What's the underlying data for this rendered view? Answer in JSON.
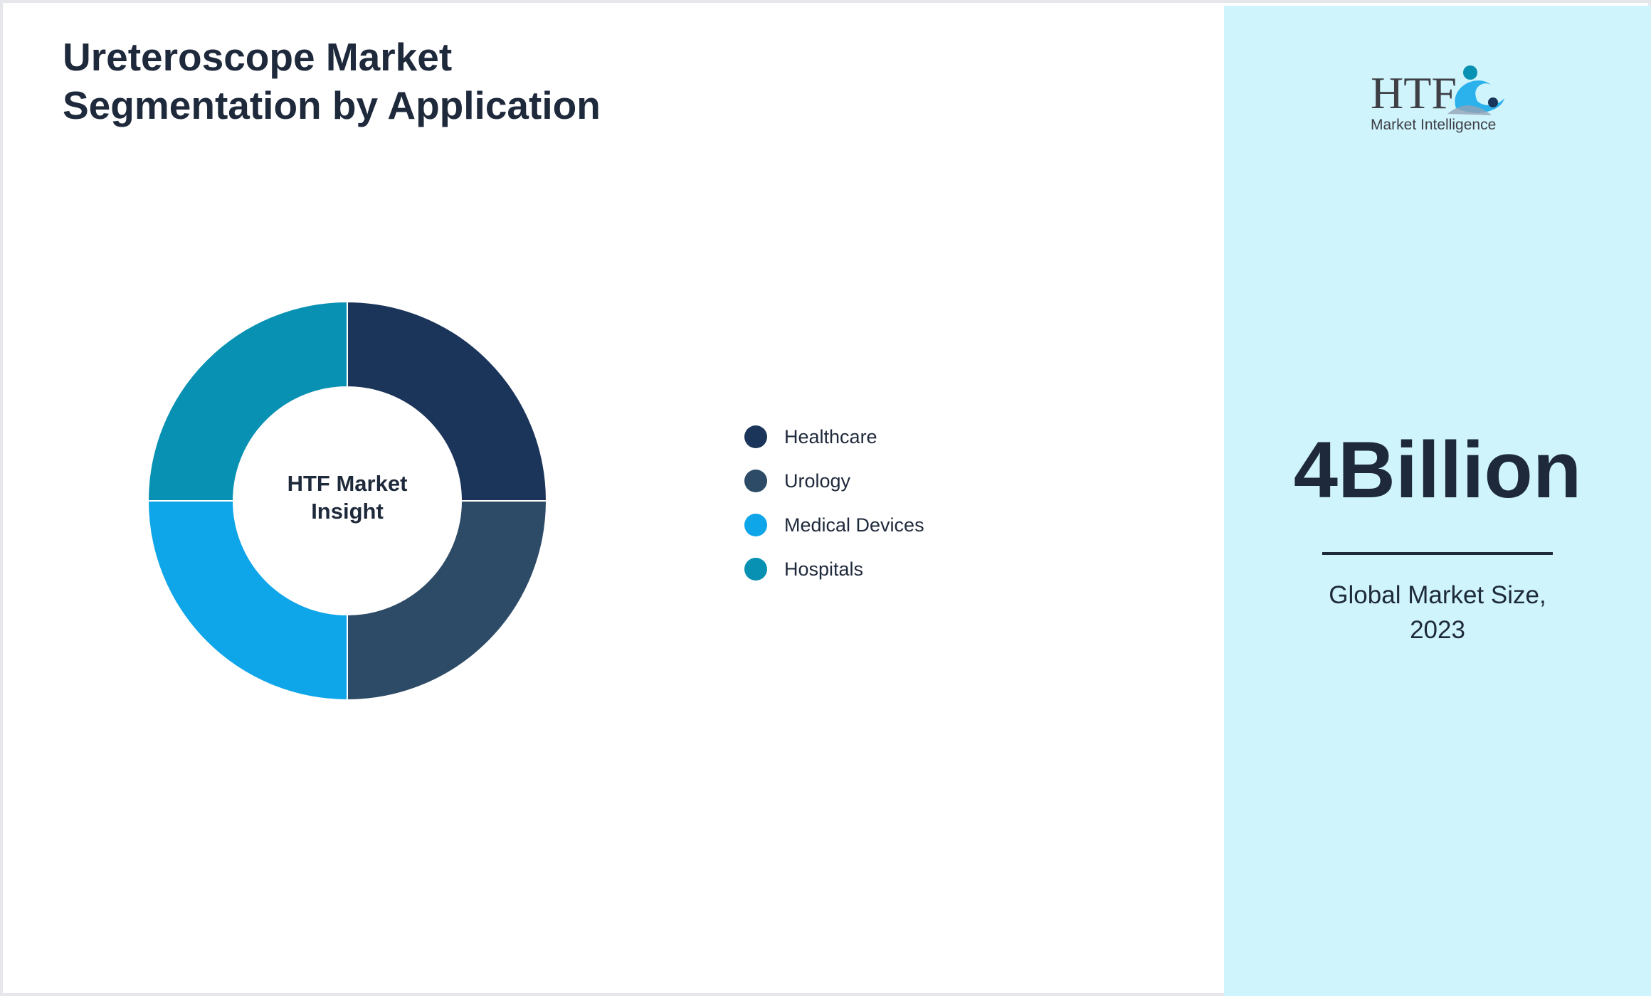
{
  "header": {
    "title_line1": "Ureteroscope Market",
    "title_line2": "Segmentation by Application"
  },
  "chart_data": {
    "type": "pie",
    "title": "Ureteroscope Market Segmentation by Application",
    "center_label_line1": "HTF Market",
    "center_label_line2": "Insight",
    "categories": [
      "Healthcare",
      "Urology",
      "Medical Devices",
      "Hospitals"
    ],
    "values": [
      25,
      25,
      25,
      25
    ],
    "colors": [
      "#1b355a",
      "#2d4b67",
      "#0ea5e9",
      "#0891b2"
    ],
    "legend_position": "right"
  },
  "panel": {
    "logo_mark": "HTF",
    "logo_text": "Market Intelligence",
    "value": "4Billion",
    "caption_line1": "Global Market Size,",
    "caption_line2": "2023",
    "background": "#cff4fb"
  }
}
